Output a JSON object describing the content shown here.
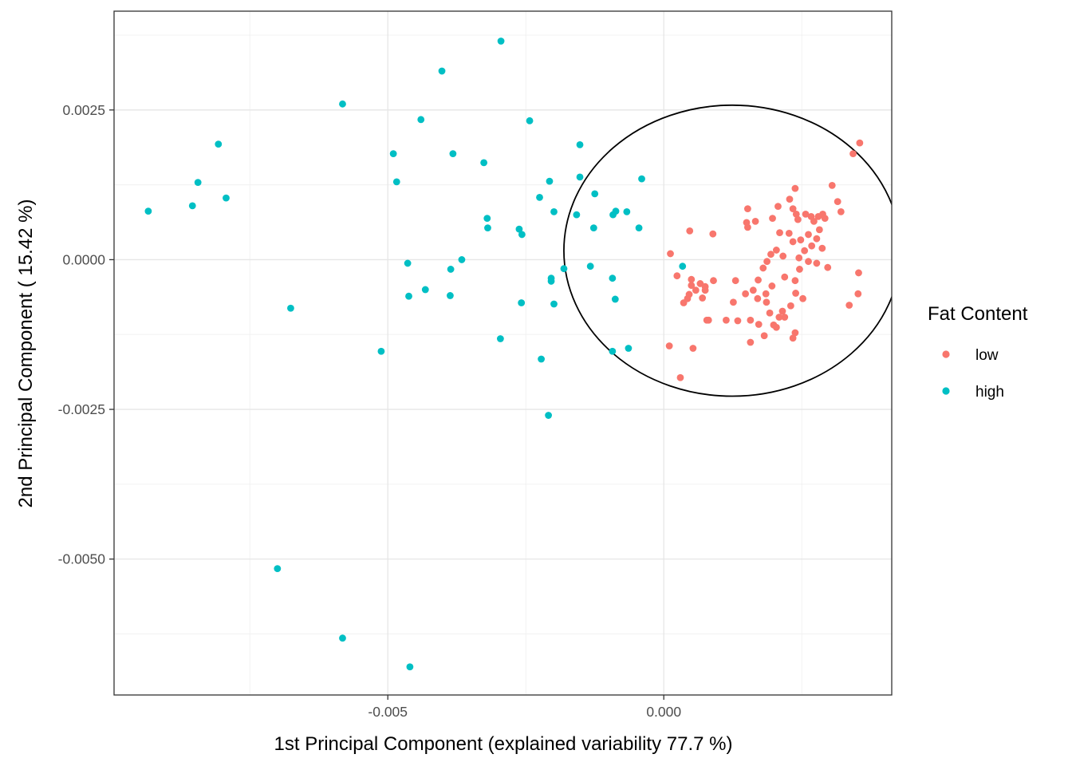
{
  "chart_data": {
    "type": "scatter",
    "title": "",
    "xlabel": "1st Principal Component (explained variability 77.7 %)",
    "ylabel": "2nd Principal Component ( 15.42 %)",
    "xlim": [
      -0.00996,
      0.00413
    ],
    "ylim": [
      -0.00727,
      0.00415
    ],
    "x_ticks": [
      -0.005,
      0.0
    ],
    "x_tick_labels": [
      "-0.005",
      "0.000"
    ],
    "y_ticks": [
      -0.005,
      -0.0025,
      0.0,
      0.0025
    ],
    "y_tick_labels": [
      "-0.0050",
      "-0.0025",
      "0.0000",
      "0.0025"
    ],
    "grid": true,
    "legend": {
      "title": "Fat Content",
      "position": "right"
    },
    "series": [
      {
        "name": "low",
        "color": "#F8766D",
        "points": [
          [
            0.00355,
            0.00195
          ],
          [
            0.00343,
            0.00177
          ],
          [
            0.00305,
            0.00124
          ],
          [
            0.00315,
            0.00097
          ],
          [
            0.00321,
            0.0008
          ],
          [
            0.00288,
            0.00076
          ],
          [
            0.0028,
            0.00072
          ],
          [
            0.00267,
            0.00072
          ],
          [
            0.00257,
            0.00076
          ],
          [
            0.0024,
            0.00076
          ],
          [
            0.00272,
            0.00064
          ],
          [
            0.00292,
            0.00069
          ],
          [
            0.00238,
            0.00119
          ],
          [
            0.00228,
            0.00101
          ],
          [
            0.00234,
            0.00085
          ],
          [
            0.00207,
            0.00089
          ],
          [
            0.00197,
            0.00069
          ],
          [
            0.00243,
            0.00067
          ],
          [
            0.00282,
            0.0005
          ],
          [
            0.00262,
            0.00042
          ],
          [
            0.00227,
            0.00044
          ],
          [
            0.0021,
            0.00045
          ],
          [
            0.00166,
            0.00064
          ],
          [
            0.0015,
            0.00062
          ],
          [
            0.00152,
            0.00085
          ],
          [
            0.00152,
            0.00054
          ],
          [
            0.00234,
            0.0003
          ],
          [
            0.00248,
            0.00033
          ],
          [
            0.00268,
            0.00023
          ],
          [
            0.00277,
            0.00035
          ],
          [
            0.00204,
            0.00016
          ],
          [
            0.00216,
            6e-05
          ],
          [
            0.00194,
            9e-05
          ],
          [
            0.00187,
            -3e-05
          ],
          [
            0.0018,
            -0.00014
          ],
          [
            0.00255,
            0.00015
          ],
          [
            0.00287,
            0.00019
          ],
          [
            0.00245,
            3e-05
          ],
          [
            0.00262,
            -3e-05
          ],
          [
            0.00277,
            -6e-05
          ],
          [
            0.00297,
            -0.00013
          ],
          [
            0.00246,
            -0.00016
          ],
          [
            0.00219,
            -0.00029
          ],
          [
            0.00196,
            -0.00044
          ],
          [
            0.00171,
            -0.00034
          ],
          [
            0.00162,
            -0.00051
          ],
          [
            0.00185,
            -0.00057
          ],
          [
            0.00148,
            -0.00057
          ],
          [
            0.0013,
            -0.00035
          ],
          [
            0.00238,
            -0.00035
          ],
          [
            0.00239,
            -0.00056
          ],
          [
            0.00252,
            -0.00065
          ],
          [
            0.0023,
            -0.00077
          ],
          [
            0.00215,
            -0.00086
          ],
          [
            0.00192,
            -0.00089
          ],
          [
            0.0017,
            -0.00065
          ],
          [
            0.00186,
            -0.00071
          ],
          [
            0.00172,
            -0.00108
          ],
          [
            0.00199,
            -0.00109
          ],
          [
            0.00204,
            -0.00113
          ],
          [
            0.00219,
            -0.00096
          ],
          [
            0.00209,
            -0.00096
          ],
          [
            0.00238,
            -0.00122
          ],
          [
            0.00234,
            -0.00131
          ],
          [
            0.00182,
            -0.00127
          ],
          [
            0.00134,
            -0.00102
          ],
          [
            0.00113,
            -0.00101
          ],
          [
            0.00157,
            -0.00101
          ],
          [
            0.00157,
            -0.00138
          ],
          [
            0.00126,
            -0.00071
          ],
          [
            0.0009,
            -0.00035
          ],
          [
            0.00081,
            -0.00101
          ],
          [
            0.00078,
            -0.00101
          ],
          [
            0.00075,
            -0.00045
          ],
          [
            0.00066,
            -0.0004
          ],
          [
            0.0007,
            -0.00064
          ],
          [
            0.00075,
            -0.00051
          ],
          [
            0.00058,
            -0.00051
          ],
          [
            0.00046,
            -0.00058
          ],
          [
            0.0005,
            -0.00033
          ],
          [
            0.00043,
            -0.00065
          ],
          [
            0.0005,
            -0.00043
          ],
          [
            0.00036,
            -0.00072
          ],
          [
            0.00047,
            0.00048
          ],
          [
            0.00089,
            0.00043
          ],
          [
            0.00024,
            -0.00027
          ],
          [
            0.00012,
            0.0001
          ],
          [
            0.0001,
            -0.00144
          ],
          [
            0.0003,
            -0.00197
          ],
          [
            0.00053,
            -0.00148
          ],
          [
            0.00353,
            -0.00022
          ],
          [
            0.00352,
            -0.00057
          ],
          [
            0.00336,
            -0.00076
          ]
        ]
      },
      {
        "name": "high",
        "color": "#00BFC4",
        "points": [
          [
            -0.00934,
            0.00081
          ],
          [
            -0.00854,
            0.0009
          ],
          [
            -0.00844,
            0.00129
          ],
          [
            -0.00807,
            0.00193
          ],
          [
            -0.00793,
            0.00103
          ],
          [
            -0.00676,
            -0.00081
          ],
          [
            -0.007,
            -0.00516
          ],
          [
            -0.00582,
            0.0026
          ],
          [
            -0.00582,
            -0.00632
          ],
          [
            -0.00512,
            -0.00153
          ],
          [
            -0.0049,
            0.00177
          ],
          [
            -0.00484,
            0.0013
          ],
          [
            -0.00464,
            -6e-05
          ],
          [
            -0.00462,
            -0.00061
          ],
          [
            -0.0046,
            -0.0068
          ],
          [
            -0.0044,
            0.00234
          ],
          [
            -0.00432,
            -0.0005
          ],
          [
            -0.00402,
            0.00315
          ],
          [
            -0.00386,
            -0.00016
          ],
          [
            -0.00387,
            -0.0006
          ],
          [
            -0.00382,
            0.00177
          ],
          [
            -0.00366,
            0.0
          ],
          [
            -0.00326,
            0.00162
          ],
          [
            -0.0032,
            0.00069
          ],
          [
            -0.00319,
            0.00053
          ],
          [
            -0.00295,
            0.00365
          ],
          [
            -0.00296,
            -0.00132
          ],
          [
            -0.00262,
            0.00051
          ],
          [
            -0.00257,
            0.00042
          ],
          [
            -0.00258,
            -0.00072
          ],
          [
            -0.00243,
            0.00232
          ],
          [
            -0.00225,
            0.00104
          ],
          [
            -0.00222,
            -0.00166
          ],
          [
            -0.00207,
            0.00131
          ],
          [
            -0.00209,
            -0.0026
          ],
          [
            -0.00204,
            -0.00031
          ],
          [
            -0.00204,
            -0.00036
          ],
          [
            -0.00199,
            0.0008
          ],
          [
            -0.00199,
            -0.00074
          ],
          [
            -0.00181,
            -0.00015
          ],
          [
            -0.00158,
            0.00075
          ],
          [
            -0.00152,
            0.00192
          ],
          [
            -0.00152,
            0.00138
          ],
          [
            -0.00133,
            -0.00011
          ],
          [
            -0.00125,
            0.0011
          ],
          [
            -0.00127,
            0.00053
          ],
          [
            -0.00092,
            0.00075
          ],
          [
            -0.00093,
            -0.00031
          ],
          [
            -0.00093,
            -0.00153
          ],
          [
            -0.00087,
            0.00081
          ],
          [
            -0.00088,
            -0.00066
          ],
          [
            -0.00067,
            0.0008
          ],
          [
            -0.00064,
            -0.00148
          ],
          [
            -0.00045,
            0.00053
          ],
          [
            -0.0004,
            0.00135
          ],
          [
            0.00034,
            -0.00011
          ]
        ]
      }
    ],
    "ellipse": {
      "center": [
        0.00124,
        0.00015
      ],
      "rx": 0.00305,
      "ry": 0.00243,
      "rotation_deg": 0
    }
  }
}
